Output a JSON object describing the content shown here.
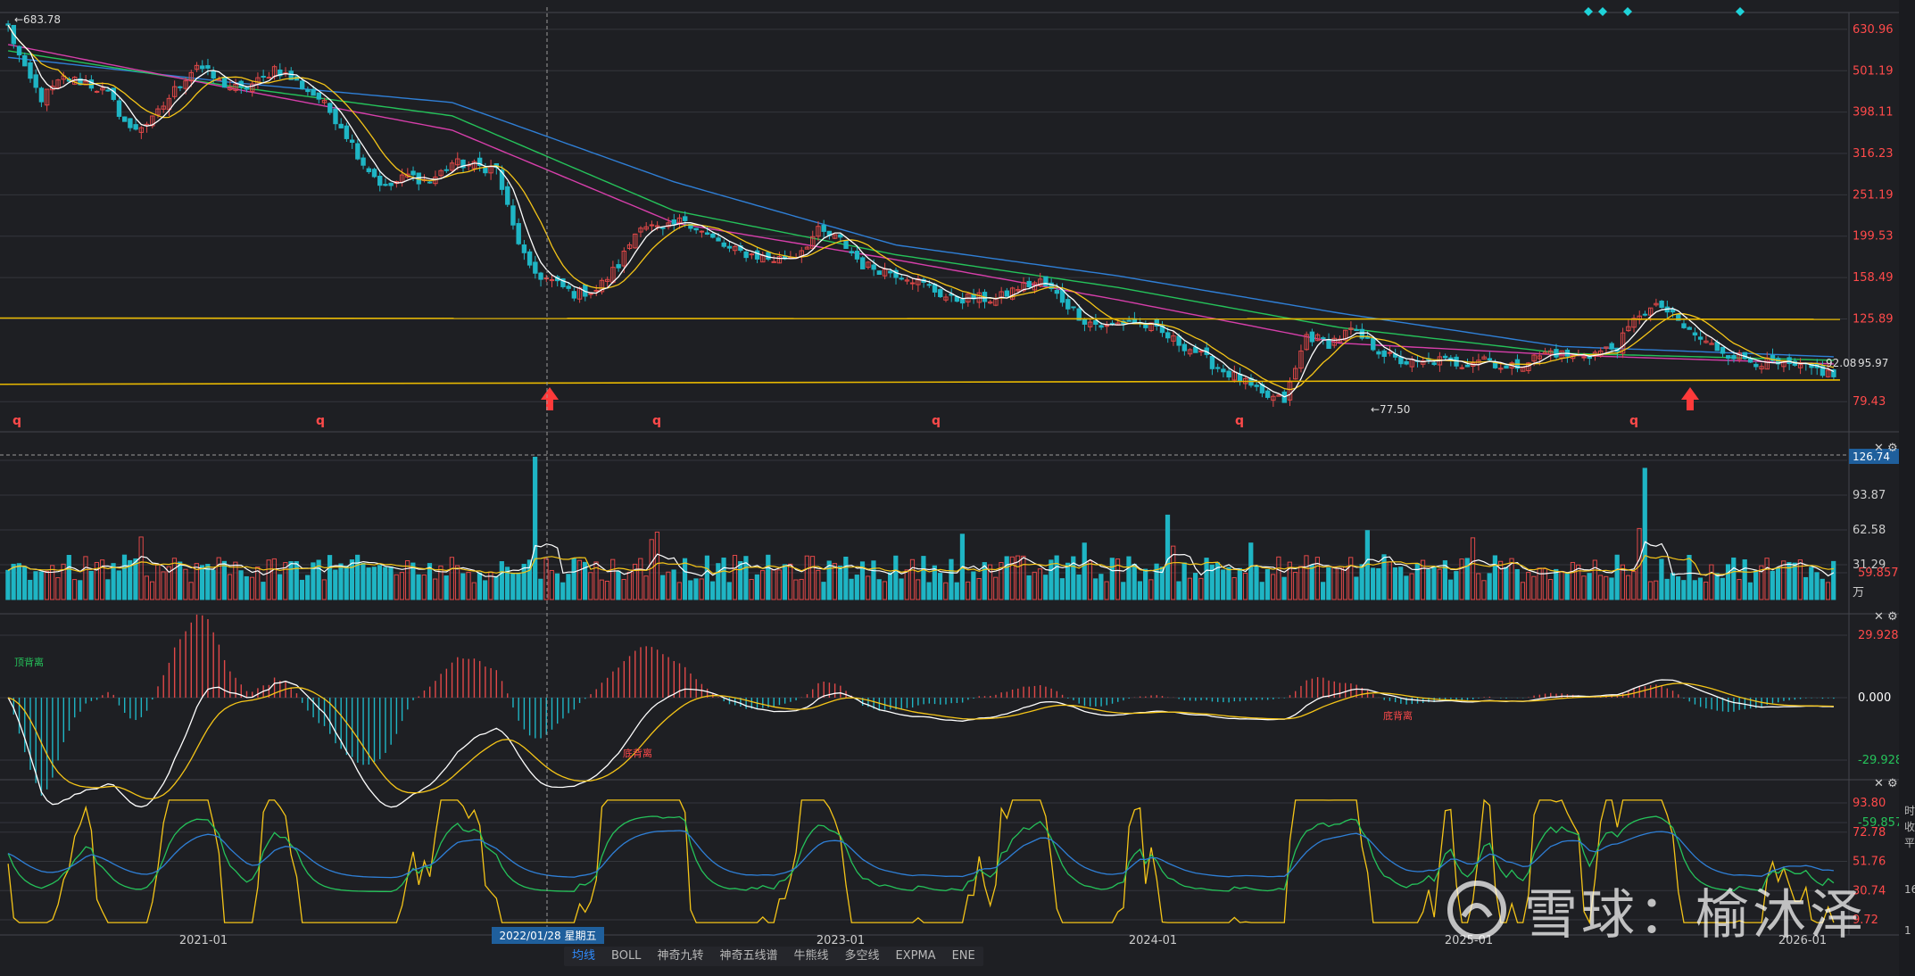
{
  "tabs": [
    "均线",
    "BOLL",
    "神奇九转",
    "神奇五线谱",
    "牛熊线",
    "多空线",
    "EXPMA",
    "ENE"
  ],
  "active_tab": 0,
  "watermark": "雪球：榆沐泽",
  "right_side_labels": [
    "时",
    "收",
    "平",
    "16",
    "1"
  ],
  "colors": {
    "bg": "#1e1f23",
    "up": "#e04848",
    "down": "#1fb5c4",
    "grid": "#34363c",
    "ma5": "#ffffff",
    "ma10": "#f5c518",
    "ma20": "#d63faa",
    "ma30": "#25c25a",
    "ma60": "#2f7fd6",
    "support": "#e8b800",
    "axis_red": "#ff4a4a"
  },
  "chart_data": [
    {
      "type": "candlestick",
      "panel": "price",
      "x_ticks": [
        "2021-01",
        "2023-01",
        "2024-01",
        "2025-01",
        "2026-01"
      ],
      "y_ticks": [
        630.96,
        501.19,
        398.11,
        316.23,
        251.19,
        199.53,
        158.49,
        125.89,
        79.43
      ],
      "y_scale": "log",
      "ylim": [
        72,
        700
      ],
      "price_labels": {
        "high": "683.78",
        "low": "77.50",
        "current": "92.08",
        "current2": "95.97"
      },
      "crosshair_date": "2022/01/28 星期五",
      "horizontal_lines": [
        {
          "y": 126.5,
          "y_end": 125.6
        },
        {
          "y": 87.5,
          "y_end": 89.6
        }
      ],
      "up_arrows": [
        "2022/01/28",
        "2025-10"
      ],
      "q_markers": [
        "q",
        "q",
        "q",
        "q",
        "q",
        "q"
      ],
      "weekly_close_path": [
        [
          0,
          640
        ],
        [
          3,
          500
        ],
        [
          6,
          430
        ],
        [
          10,
          480
        ],
        [
          14,
          470
        ],
        [
          18,
          440
        ],
        [
          22,
          360
        ],
        [
          26,
          380
        ],
        [
          30,
          450
        ],
        [
          34,
          520
        ],
        [
          38,
          470
        ],
        [
          42,
          450
        ],
        [
          46,
          480
        ],
        [
          48,
          510
        ],
        [
          52,
          470
        ],
        [
          56,
          430
        ],
        [
          60,
          370
        ],
        [
          64,
          300
        ],
        [
          68,
          260
        ],
        [
          72,
          280
        ],
        [
          76,
          270
        ],
        [
          80,
          300
        ],
        [
          84,
          295
        ],
        [
          88,
          290
        ],
        [
          91,
          210
        ],
        [
          94,
          165
        ],
        [
          98,
          155
        ],
        [
          102,
          145
        ],
        [
          106,
          148
        ],
        [
          110,
          170
        ],
        [
          114,
          215
        ],
        [
          118,
          205
        ],
        [
          122,
          220
        ],
        [
          126,
          200
        ],
        [
          130,
          185
        ],
        [
          134,
          180
        ],
        [
          138,
          175
        ],
        [
          142,
          180
        ],
        [
          146,
          205
        ],
        [
          150,
          195
        ],
        [
          154,
          170
        ],
        [
          158,
          165
        ],
        [
          162,
          160
        ],
        [
          166,
          150
        ],
        [
          170,
          140
        ],
        [
          174,
          142
        ],
        [
          178,
          140
        ],
        [
          182,
          150
        ],
        [
          186,
          155
        ],
        [
          190,
          140
        ],
        [
          194,
          125
        ],
        [
          198,
          120
        ],
        [
          202,
          125
        ],
        [
          206,
          120
        ],
        [
          210,
          112
        ],
        [
          214,
          105
        ],
        [
          218,
          96
        ],
        [
          222,
          90
        ],
        [
          226,
          82
        ],
        [
          230,
          80
        ],
        [
          232,
          95
        ],
        [
          234,
          115
        ],
        [
          238,
          110
        ],
        [
          242,
          118
        ],
        [
          246,
          108
        ],
        [
          250,
          100
        ],
        [
          254,
          98
        ],
        [
          258,
          100
        ],
        [
          262,
          98
        ],
        [
          266,
          102
        ],
        [
          270,
          95
        ],
        [
          274,
          100
        ],
        [
          278,
          105
        ],
        [
          282,
          102
        ],
        [
          286,
          104
        ],
        [
          290,
          108
        ],
        [
          294,
          130
        ],
        [
          298,
          135
        ],
        [
          302,
          120
        ],
        [
          306,
          110
        ],
        [
          310,
          104
        ],
        [
          314,
          100
        ],
        [
          318,
          98
        ],
        [
          322,
          96
        ],
        [
          326,
          95
        ],
        [
          329,
          92
        ]
      ],
      "ma_paths": {
        "ma60": [
          [
            0,
            540
          ],
          [
            40,
            470
          ],
          [
            80,
            420
          ],
          [
            120,
            270
          ],
          [
            160,
            190
          ],
          [
            200,
            160
          ],
          [
            240,
            130
          ],
          [
            280,
            108
          ],
          [
            329,
            102
          ]
        ],
        "ma30": [
          [
            0,
            560
          ],
          [
            40,
            460
          ],
          [
            80,
            390
          ],
          [
            120,
            230
          ],
          [
            160,
            180
          ],
          [
            200,
            150
          ],
          [
            240,
            120
          ],
          [
            280,
            104
          ],
          [
            329,
            100
          ]
        ],
        "ma20": [
          [
            0,
            580
          ],
          [
            40,
            455
          ],
          [
            80,
            360
          ],
          [
            120,
            215
          ],
          [
            160,
            175
          ],
          [
            200,
            140
          ],
          [
            240,
            110
          ],
          [
            280,
            103
          ],
          [
            329,
            98
          ]
        ]
      }
    },
    {
      "type": "bar",
      "panel": "volume",
      "y_ticks": [
        125.16,
        93.87,
        62.58,
        31.29
      ],
      "y_unit": "万",
      "current_value": "126.74",
      "ylim": [
        0,
        130
      ]
    },
    {
      "type": "macd",
      "panel": "macd",
      "y_ticks": [
        59.857,
        29.928,
        0.0,
        -29.928,
        -59.857
      ],
      "y_tick_labels": [
        "59.857",
        "29.928",
        "0.000",
        "-29.928",
        "-59.857"
      ],
      "annotations": [
        "顶背离",
        "底背离",
        "底背离"
      ]
    },
    {
      "type": "line",
      "panel": "oscillator",
      "y_ticks": [
        93.8,
        72.78,
        51.76,
        30.74,
        9.72
      ],
      "y_tick_labels": [
        "93.80",
        "72.78",
        "51.76",
        "30.74",
        "9.72"
      ]
    }
  ]
}
